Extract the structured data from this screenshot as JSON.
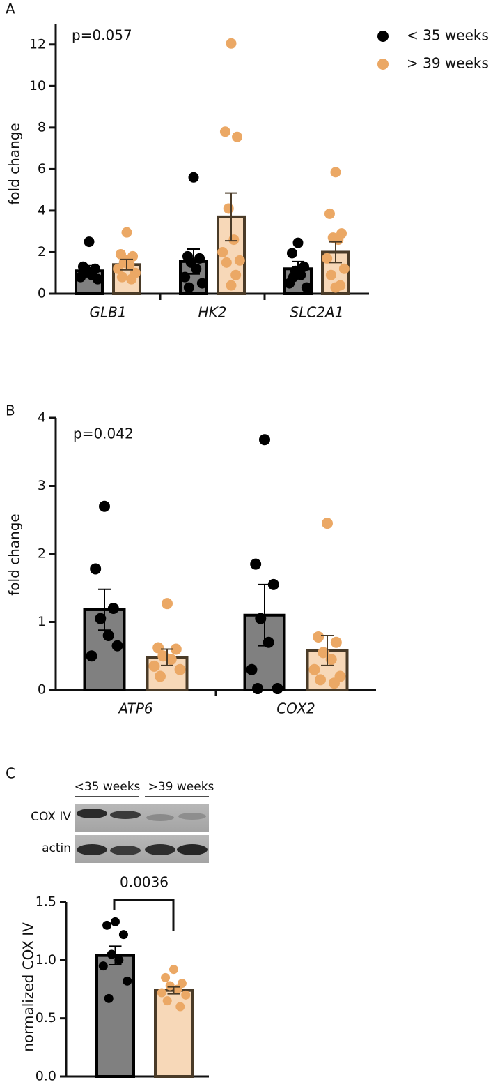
{
  "chart_data": [
    {
      "type": "bar",
      "panel": "A",
      "annotation": "p=0.057",
      "y_label": "fold change",
      "categories": [
        "GLB1",
        "HK2",
        "SLC2A1"
      ],
      "ylim": [
        0,
        13
      ],
      "yticks": [
        0,
        2,
        4,
        6,
        8,
        10,
        12
      ],
      "series": [
        {
          "name": "< 35 weeks",
          "color": "#000000",
          "bar_color": "#808080",
          "edge_color": "#000000",
          "values": [
            1.1,
            1.55,
            1.2
          ],
          "errors": [
            0.25,
            0.6,
            0.35
          ],
          "points": [
            [
              2.5,
              1.3,
              1.2,
              1.1,
              0.9,
              0.8,
              0.7,
              1.0
            ],
            [
              5.6,
              1.8,
              1.7,
              1.5,
              1.2,
              0.8,
              0.5,
              0.3
            ],
            [
              2.45,
              1.95,
              1.3,
              1.1,
              0.9,
              0.5,
              0.3,
              0.8
            ]
          ]
        },
        {
          "name": "> 39 weeks",
          "color": "#eba865",
          "bar_color": "#f7d8b8",
          "edge_color": "#4a3b28",
          "values": [
            1.4,
            3.7,
            2.0
          ],
          "errors": [
            0.25,
            1.15,
            0.5
          ],
          "points": [
            [
              2.95,
              1.9,
              1.8,
              1.5,
              1.4,
              1.2,
              1.0,
              0.8,
              0.7,
              1.6
            ],
            [
              12.05,
              7.8,
              7.55,
              4.1,
              2.6,
              2.0,
              1.6,
              1.5,
              0.9,
              0.4
            ],
            [
              5.85,
              3.85,
              2.9,
              2.7,
              2.6,
              1.7,
              1.2,
              0.9,
              0.4,
              0.3
            ]
          ]
        }
      ]
    },
    {
      "type": "bar",
      "panel": "B",
      "annotation": "p=0.042",
      "y_label": "fold change",
      "categories": [
        "ATP6",
        "COX2"
      ],
      "ylim": [
        0,
        4
      ],
      "yticks": [
        0,
        1,
        2,
        3,
        4
      ],
      "series": [
        {
          "color": "#000000",
          "bar_color": "#808080",
          "edge_color": "#000000",
          "values": [
            1.18,
            1.1
          ],
          "errors": [
            0.3,
            0.45
          ],
          "points": [
            [
              2.7,
              1.78,
              1.2,
              1.05,
              0.8,
              0.5,
              0.65
            ],
            [
              3.68,
              1.85,
              1.55,
              1.05,
              0.7,
              0.3,
              0.02,
              0.02
            ]
          ]
        },
        {
          "color": "#eba865",
          "bar_color": "#f7d8b8",
          "edge_color": "#4a3b28",
          "values": [
            0.48,
            0.58
          ],
          "errors": [
            0.12,
            0.22
          ],
          "points": [
            [
              1.27,
              0.62,
              0.6,
              0.5,
              0.45,
              0.35,
              0.3,
              0.2
            ],
            [
              2.45,
              0.78,
              0.7,
              0.55,
              0.45,
              0.3,
              0.2,
              0.15,
              0.1
            ]
          ]
        }
      ]
    },
    {
      "type": "bar",
      "panel": "C",
      "annotation": "0.0036",
      "y_label": "normalized COX IV",
      "blot": {
        "groups": [
          "<35 weeks",
          ">39 weeks"
        ],
        "rows": [
          "COX IV",
          "actin"
        ]
      },
      "categories": [
        null
      ],
      "ylim": [
        0,
        1.5
      ],
      "yticks": [
        {
          "value": 0,
          "label": "0.0"
        },
        0.5,
        {
          "value": 1,
          "label": "1.0"
        },
        1.5
      ],
      "series": [
        {
          "color": "#000000",
          "bar_color": "#808080",
          "edge_color": "#000000",
          "values": [
            1.04
          ],
          "errors": [
            0.08
          ],
          "points": [
            [
              1.33,
              1.3,
              1.22,
              1.05,
              1.0,
              0.95,
              0.82,
              0.67
            ]
          ]
        },
        {
          "color": "#eba865",
          "bar_color": "#f7d8b8",
          "edge_color": "#4a3b28",
          "values": [
            0.74
          ],
          "errors": [
            0.03
          ],
          "points": [
            [
              0.92,
              0.85,
              0.8,
              0.78,
              0.75,
              0.72,
              0.7,
              0.65,
              0.6
            ]
          ]
        }
      ]
    }
  ]
}
